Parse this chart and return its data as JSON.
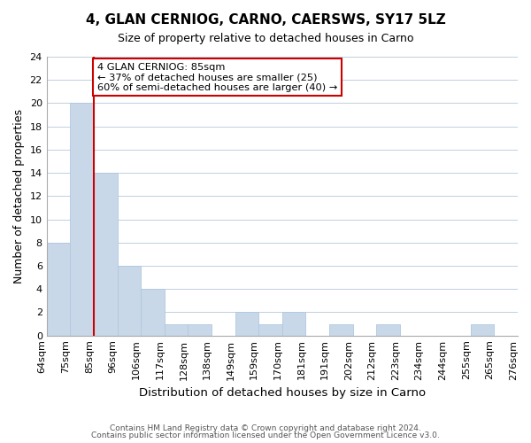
{
  "title": "4, GLAN CERNIOG, CARNO, CAERSWS, SY17 5LZ",
  "subtitle": "Size of property relative to detached houses in Carno",
  "xlabel": "Distribution of detached houses by size in Carno",
  "ylabel": "Number of detached properties",
  "tick_labels": [
    "64sqm",
    "75sqm",
    "85sqm",
    "96sqm",
    "106sqm",
    "117sqm",
    "128sqm",
    "138sqm",
    "149sqm",
    "159sqm",
    "170sqm",
    "181sqm",
    "191sqm",
    "202sqm",
    "212sqm",
    "223sqm",
    "234sqm",
    "244sqm",
    "255sqm",
    "265sqm",
    "276sqm"
  ],
  "bar_heights": [
    8,
    20,
    14,
    6,
    4,
    1,
    1,
    0,
    2,
    1,
    2,
    0,
    1,
    0,
    1,
    0,
    0,
    0,
    1,
    0
  ],
  "bar_color": "#c8d8e8",
  "bar_edge_color": "#b0c8e0",
  "grid_color": "#c0d0e0",
  "redline_x": 2,
  "annotation_lines": [
    "4 GLAN CERNIOG: 85sqm",
    "← 37% of detached houses are smaller (25)",
    "60% of semi-detached houses are larger (40) →"
  ],
  "annotation_box_color": "#ffffff",
  "annotation_box_edge_color": "#cc0000",
  "redline_color": "#cc0000",
  "ylim": [
    0,
    24
  ],
  "yticks": [
    0,
    2,
    4,
    6,
    8,
    10,
    12,
    14,
    16,
    18,
    20,
    22,
    24
  ],
  "footer_line1": "Contains HM Land Registry data © Crown copyright and database right 2024.",
  "footer_line2": "Contains public sector information licensed under the Open Government Licence v3.0."
}
